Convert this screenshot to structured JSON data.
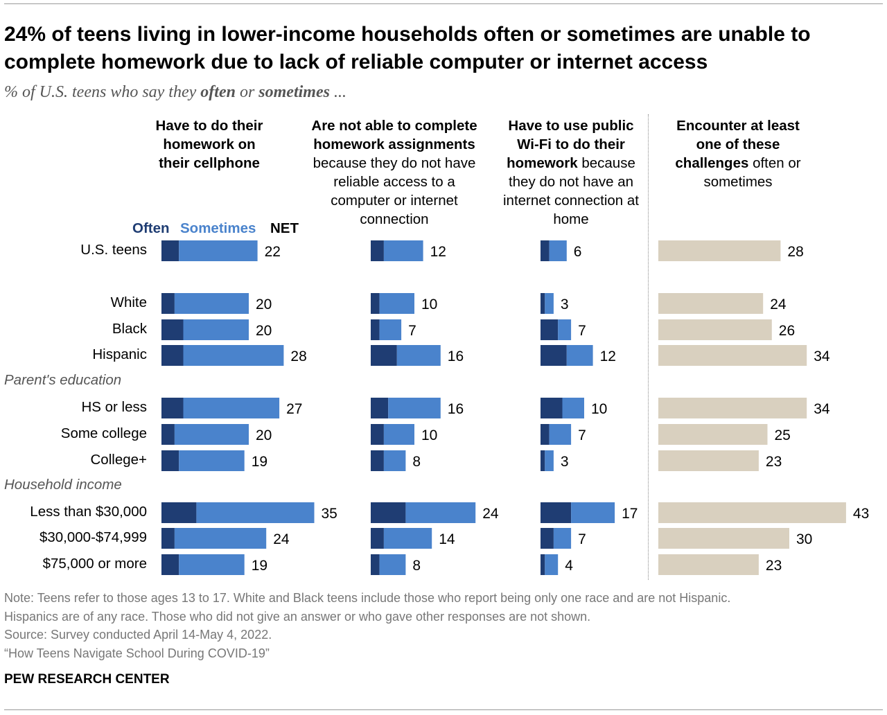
{
  "title": "24% of teens living in lower-income households often or sometimes are unable to complete homework due to lack of reliable computer or internet access",
  "subtitle": {
    "pre": "% of U.S. teens who say they ",
    "often": "often",
    "or": " or ",
    "sometimes": "sometimes",
    "post": " ..."
  },
  "legend": {
    "often": "Often",
    "sometimes": "Sometimes",
    "net": "NET"
  },
  "colors": {
    "often": "#1f3d73",
    "sometimes": "#4a83cc",
    "net": "#d9d0bf"
  },
  "groups": [
    "Parent's education",
    "Household income"
  ],
  "columns": [
    {
      "bold": "Have to do their homework on their cellphone",
      "rest": ""
    },
    {
      "bold": "Are not able to complete homework assignments",
      "rest": " because they do not have reliable access to a computer or internet connection"
    },
    {
      "bold": "Have to use public Wi-Fi to do their homework",
      "rest": " because they do not have an internet connection at home"
    },
    {
      "bold": "Encounter at least one of these challenges",
      "rest": " often or sometimes"
    }
  ],
  "chart_data": {
    "type": "bar",
    "orientation": "horizontal",
    "stacked": true,
    "categories": [
      "U.S. teens",
      "White",
      "Black",
      "Hispanic",
      "HS or less",
      "Some college",
      "College+",
      "Less than $30,000",
      "$30,000-$74,999",
      "$75,000 or more"
    ],
    "panels": [
      {
        "series": [
          {
            "name": "Often",
            "values": [
              4,
              3,
              5,
              5,
              5,
              3,
              4,
              8,
              3,
              4
            ]
          },
          {
            "name": "Sometimes",
            "values": [
              18,
              17,
              15,
              23,
              22,
              17,
              15,
              27,
              21,
              15
            ]
          }
        ],
        "net": [
          22,
          20,
          20,
          28,
          27,
          20,
          19,
          35,
          24,
          19
        ]
      },
      {
        "series": [
          {
            "name": "Often",
            "values": [
              3,
              2,
              2,
              6,
              4,
              3,
              3,
              8,
              3,
              2
            ]
          },
          {
            "name": "Sometimes",
            "values": [
              9,
              8,
              5,
              10,
              12,
              7,
              5,
              16,
              11,
              6
            ]
          }
        ],
        "net": [
          12,
          10,
          7,
          16,
          16,
          10,
          8,
          24,
          14,
          8
        ]
      },
      {
        "series": [
          {
            "name": "Often",
            "values": [
              2,
              1,
              4,
              6,
              5,
              2,
              1,
              7,
              3,
              1
            ]
          },
          {
            "name": "Sometimes",
            "values": [
              4,
              2,
              3,
              6,
              5,
              5,
              2,
              10,
              4,
              3
            ]
          }
        ],
        "net": [
          6,
          3,
          7,
          12,
          10,
          7,
          3,
          17,
          7,
          4
        ]
      },
      {
        "series": [],
        "net": [
          28,
          24,
          26,
          34,
          34,
          25,
          23,
          43,
          30,
          23
        ]
      }
    ]
  },
  "notes": [
    "Note: Teens refer to those ages 13 to 17. White and Black teens include those who report being only one race and are not Hispanic.",
    "Hispanics are of any race. Those who did not give an answer or who gave other responses are not shown.",
    "Source: Survey conducted April 14-May 4, 2022.",
    "“How Teens Navigate School During COVID-19”"
  ],
  "brand": "PEW RESEARCH CENTER"
}
